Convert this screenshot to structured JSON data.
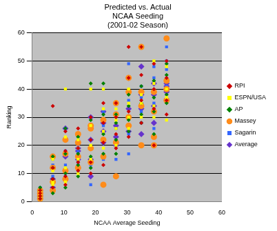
{
  "chart_data": {
    "type": "scatter",
    "title": "Predicted vs. Actual\nNCAA Seeding\n(2001-02 Season)",
    "x_label": "NCAA Average Seeding",
    "y_label": "Ranking",
    "xlim": [
      0,
      60
    ],
    "xticks": [
      0,
      10,
      20,
      30,
      40,
      50,
      60
    ],
    "ylim": [
      0,
      60
    ],
    "yticks": [
      0,
      10,
      20,
      30,
      40,
      50,
      60
    ],
    "grid": true,
    "legend": "right",
    "x": [
      2.5,
      2.5,
      2.5,
      2.5,
      6.5,
      6.5,
      6.5,
      6.5,
      10.5,
      10.5,
      10.5,
      10.5,
      14.5,
      14.5,
      14.5,
      14.5,
      18.5,
      18.5,
      18.5,
      18.5,
      22.5,
      22.5,
      22.5,
      22.5,
      26.5,
      26.5,
      26.5,
      26.5,
      30.5,
      30.5,
      30.5,
      30.5,
      34.5,
      34.5,
      34.5,
      34.5,
      38.5,
      38.5,
      38.5,
      38.5,
      42.5,
      42.5,
      42.5,
      42.5
    ],
    "series": [
      {
        "name": "RPI",
        "color": "#cc0000",
        "marker": "diamond",
        "values": [
          1,
          2,
          3,
          4,
          5,
          8,
          12,
          34,
          6,
          9,
          18,
          25,
          11,
          14,
          19,
          26,
          10,
          14,
          22,
          30,
          13,
          21,
          28,
          35,
          19,
          24,
          30,
          35,
          23,
          32,
          44,
          55,
          28,
          36,
          45,
          55,
          20,
          33,
          40,
          49,
          31,
          36,
          44,
          50
        ]
      },
      {
        "name": "ESPN/USA",
        "color": "#ffff00",
        "marker": "square",
        "values": [
          1,
          2,
          3,
          4,
          6,
          7,
          11,
          15,
          7,
          12,
          23,
          40,
          10,
          15,
          19,
          22,
          15,
          20,
          27,
          40,
          19,
          25,
          33,
          40,
          20,
          26,
          29,
          33,
          26,
          30,
          35,
          40,
          30,
          35,
          38,
          55,
          30,
          34,
          42,
          50,
          29,
          37,
          40,
          48
        ]
      },
      {
        "name": "AP",
        "color": "#008000",
        "marker": "diamond",
        "values": [
          1,
          2,
          4,
          5,
          3,
          8,
          12,
          16,
          5,
          10,
          17,
          26,
          9,
          13,
          17,
          23,
          12,
          16,
          29,
          42,
          17,
          24,
          31,
          42,
          17,
          22,
          28,
          31,
          25,
          29,
          34,
          38,
          28,
          31,
          35,
          41,
          24,
          32,
          37,
          43,
          35,
          38,
          45,
          49
        ]
      },
      {
        "name": "Massey",
        "color": "#ff8c1a",
        "marker": "circle",
        "values": [
          1,
          2,
          3,
          4,
          4,
          7,
          12,
          16,
          8,
          11,
          17,
          22,
          12,
          16,
          21,
          24,
          14,
          19,
          26,
          27,
          6,
          16,
          22,
          29,
          9,
          21,
          31,
          35,
          27,
          30,
          39,
          44,
          20,
          34,
          39,
          55,
          20,
          23,
          32,
          39,
          36,
          40,
          43,
          58
        ]
      },
      {
        "name": "Sagarin",
        "color": "#3366ff",
        "marker": "square",
        "values": [
          1,
          3,
          4,
          5,
          5,
          9,
          13,
          15,
          9,
          13,
          18,
          26,
          11,
          14,
          18,
          22,
          6,
          13,
          22,
          30,
          15,
          21,
          27,
          32,
          15,
          20,
          26,
          31,
          17,
          24,
          36,
          49,
          28,
          32,
          37,
          41,
          26,
          35,
          44,
          48,
          41,
          47,
          50,
          55
        ]
      },
      {
        "name": "Average",
        "color": "#6633cc",
        "marker": "diamond",
        "values": [
          1,
          2,
          3,
          4,
          5,
          8,
          12,
          16,
          8,
          11,
          16,
          26,
          12,
          15,
          18,
          19,
          9,
          15,
          22,
          30,
          21,
          25,
          28,
          32,
          20,
          23,
          27,
          31,
          25,
          30,
          33,
          44,
          24,
          33,
          38,
          48,
          28,
          34,
          38,
          42,
          36,
          39,
          41,
          42
        ]
      }
    ]
  }
}
